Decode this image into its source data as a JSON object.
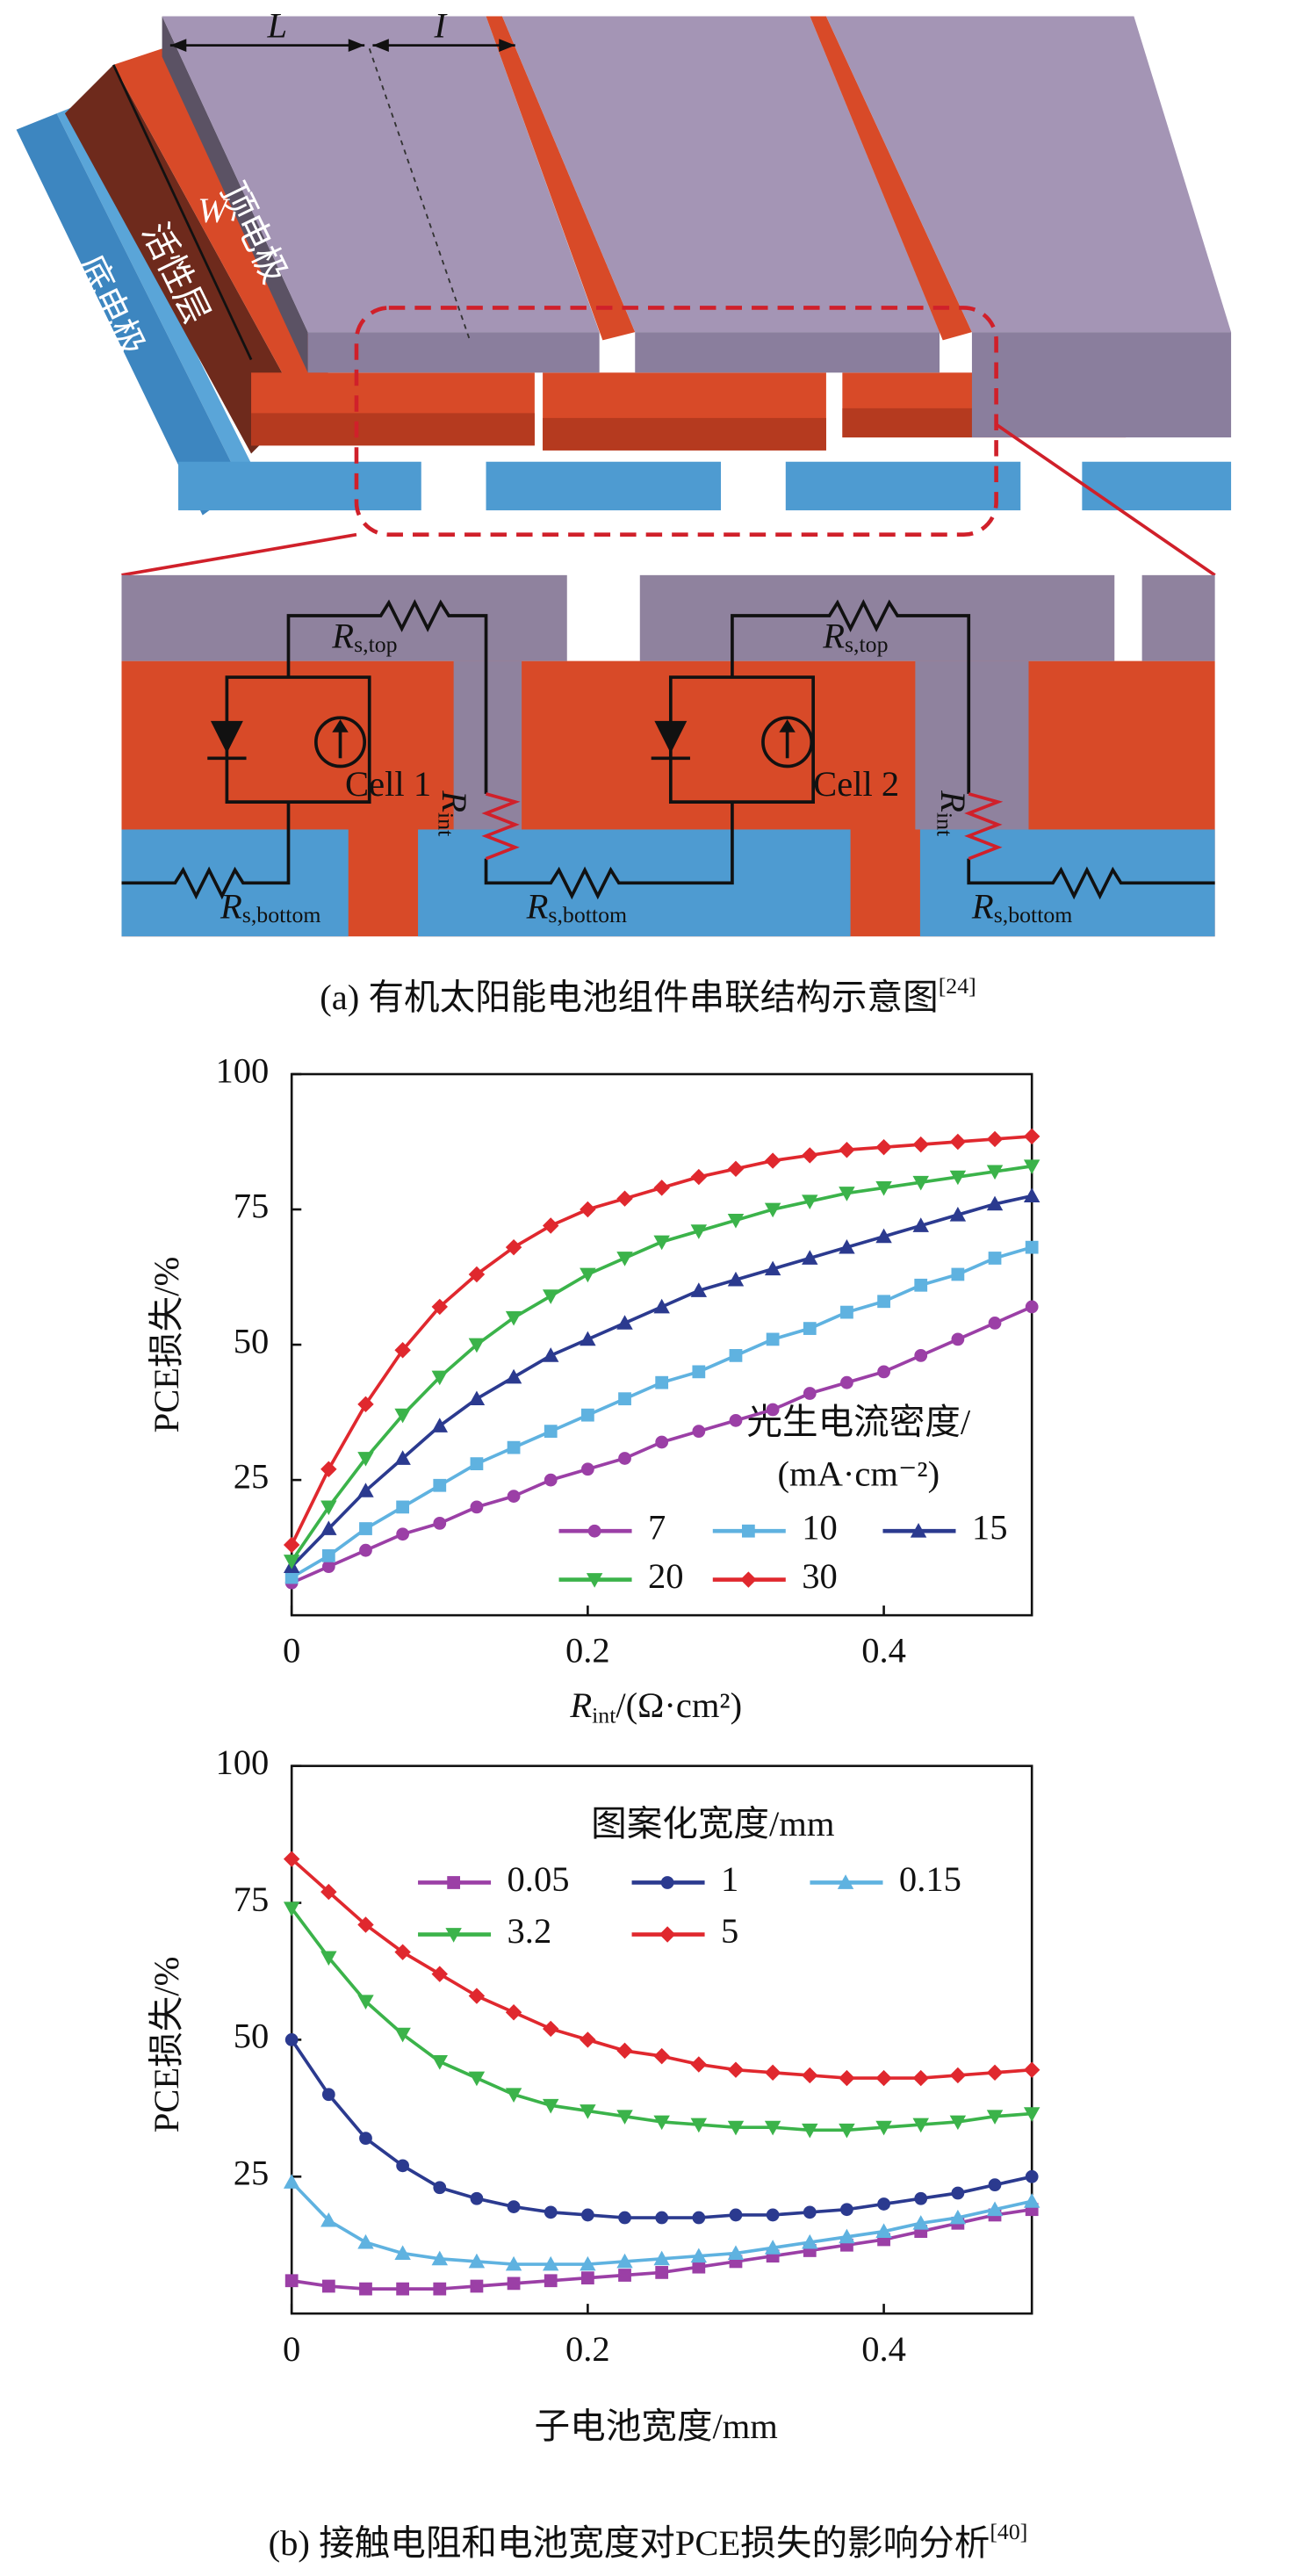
{
  "diagram": {
    "labels": {
      "L": "L",
      "I": "I",
      "W": "W",
      "top": "顶电极",
      "active": "活性层",
      "bottom": "底电极",
      "cell1": "Cell 1",
      "cell2": "Cell 2"
    },
    "resistors": [
      {
        "symbol": "R",
        "sub": "s,top"
      },
      {
        "symbol": "R",
        "sub": "s,top"
      },
      {
        "symbol": "R",
        "sub": "int"
      },
      {
        "symbol": "R",
        "sub": "int"
      },
      {
        "symbol": "R",
        "sub": "s,bottom"
      },
      {
        "symbol": "R",
        "sub": "s,bottom"
      },
      {
        "symbol": "R",
        "sub": "s,bottom"
      }
    ]
  },
  "captions": [
    {
      "text": "(a) 有机太阳能电池组件串联结构示意图",
      "ref": "[24]"
    },
    {
      "text": "(b) 接触电阻和电池宽度对PCE损失的影响分析",
      "ref": "[40]"
    }
  ],
  "chart_data": [
    {
      "type": "line",
      "y_label": "PCE损失/%",
      "x_label": {
        "symbol": "R",
        "sub": "int",
        "unit": "/(Ω·cm²)"
      },
      "legend_title": [
        "光生电流密度/",
        "(mA·cm⁻²)"
      ],
      "x": [
        0,
        0.025,
        0.05,
        0.075,
        0.1,
        0.125,
        0.15,
        0.175,
        0.2,
        0.225,
        0.25,
        0.275,
        0.3,
        0.325,
        0.35,
        0.375,
        0.4,
        0.425,
        0.45,
        0.475,
        0.5
      ],
      "xlim": [
        0,
        0.5
      ],
      "xticks": [
        0,
        0.2,
        0.4
      ],
      "ylim": [
        0,
        100
      ],
      "yticks": [
        25,
        50,
        75,
        100
      ],
      "series": [
        {
          "name": "7",
          "color": "#9b3fa6",
          "marker": "circle",
          "values": [
            6,
            9,
            12,
            15,
            17,
            20,
            22,
            25,
            27,
            29,
            32,
            34,
            36,
            38,
            41,
            43,
            45,
            48,
            51,
            54,
            57
          ]
        },
        {
          "name": "10",
          "color": "#5fb2e0",
          "marker": "square",
          "values": [
            7,
            11,
            16,
            20,
            24,
            28,
            31,
            34,
            37,
            40,
            43,
            45,
            48,
            51,
            53,
            56,
            58,
            61,
            63,
            66,
            68
          ]
        },
        {
          "name": "15",
          "color": "#2b3a8f",
          "marker": "triangle",
          "values": [
            9,
            16,
            23,
            29,
            35,
            40,
            44,
            48,
            51,
            54,
            57,
            60,
            62,
            64,
            66,
            68,
            70,
            72,
            74,
            76,
            77.5
          ]
        },
        {
          "name": "20",
          "color": "#3bb34a",
          "marker": "triangle-down",
          "values": [
            10,
            20,
            29,
            37,
            44,
            50,
            55,
            59,
            63,
            66,
            69,
            71,
            73,
            75,
            76.5,
            78,
            79,
            80,
            81,
            82,
            83
          ]
        },
        {
          "name": "30",
          "color": "#e0282e",
          "marker": "diamond",
          "values": [
            13,
            27,
            39,
            49,
            57,
            63,
            68,
            72,
            75,
            77,
            79,
            81,
            82.5,
            84,
            85,
            86,
            86.5,
            87,
            87.5,
            88,
            88.5
          ]
        }
      ]
    },
    {
      "type": "line",
      "y_label": "PCE损失/%",
      "x_label": {
        "unit": "子电池宽度/mm"
      },
      "legend_title": [
        "图案化宽度/mm"
      ],
      "x": [
        0,
        0.025,
        0.05,
        0.075,
        0.1,
        0.125,
        0.15,
        0.175,
        0.2,
        0.225,
        0.25,
        0.275,
        0.3,
        0.325,
        0.35,
        0.375,
        0.4,
        0.425,
        0.45,
        0.475,
        0.5
      ],
      "xlim": [
        0,
        0.5
      ],
      "xticks": [
        0,
        0.2,
        0.4
      ],
      "ylim": [
        0,
        100
      ],
      "yticks": [
        25,
        50,
        75,
        100
      ],
      "series": [
        {
          "name": "0.05",
          "color": "#9b3fa6",
          "marker": "square",
          "values": [
            6,
            5,
            4.5,
            4.5,
            4.5,
            5,
            5.5,
            6,
            6.5,
            7,
            7.5,
            8.5,
            9.5,
            10.5,
            11.5,
            12.5,
            13.5,
            15,
            16.5,
            18,
            19
          ]
        },
        {
          "name": "1",
          "color": "#2b3a8f",
          "marker": "circle",
          "values": [
            50,
            40,
            32,
            27,
            23,
            21,
            19.5,
            18.5,
            18,
            17.5,
            17.5,
            17.5,
            18,
            18,
            18.5,
            19,
            20,
            21,
            22,
            23.5,
            25
          ]
        },
        {
          "name": "0.15",
          "color": "#5fb2e0",
          "marker": "triangle",
          "values": [
            24,
            17,
            13,
            11,
            10,
            9.5,
            9,
            9,
            9,
            9.5,
            10,
            10.5,
            11,
            12,
            13,
            14,
            15,
            16.5,
            17.5,
            19,
            20.5
          ]
        },
        {
          "name": "3.2",
          "color": "#3bb34a",
          "marker": "triangle-down",
          "values": [
            74,
            65,
            57,
            51,
            46,
            43,
            40,
            38,
            37,
            36,
            35,
            34.5,
            34,
            34,
            33.5,
            33.5,
            34,
            34.5,
            35,
            36,
            36.5
          ]
        },
        {
          "name": "5",
          "color": "#e0282e",
          "marker": "diamond",
          "values": [
            83,
            77,
            71,
            66,
            62,
            58,
            55,
            52,
            50,
            48,
            47,
            45.5,
            44.5,
            44,
            43.5,
            43,
            43,
            43,
            43.5,
            44,
            44.5
          ]
        }
      ]
    }
  ]
}
